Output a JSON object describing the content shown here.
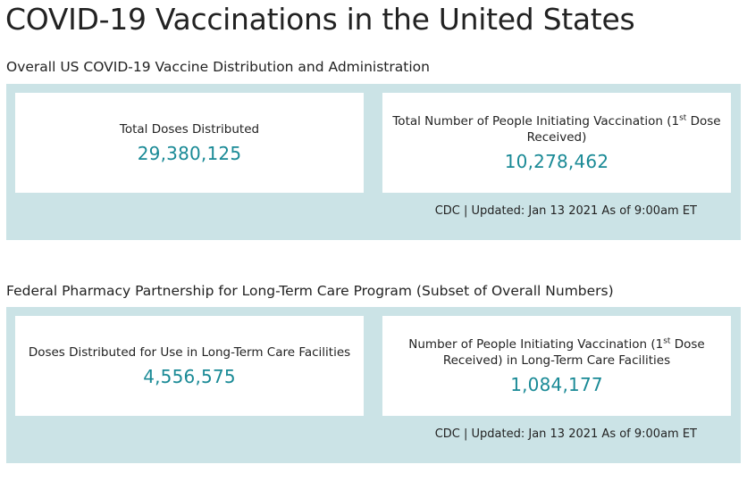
{
  "page_title": "COVID-19 Vaccinations in the United States",
  "sections": [
    {
      "title": "Overall US COVID-19 Vaccine Distribution and Administration",
      "cards": [
        {
          "label": "Total Doses Distributed",
          "value": "29,380,125"
        },
        {
          "label_pre": "Total Number of People Initiating Vaccination (1",
          "label_sup": "st",
          "label_post": " Dose Received)",
          "value": "10,278,462"
        }
      ],
      "footer": "CDC | Updated: Jan 13 2021 As of 9:00am ET"
    },
    {
      "title": "Federal Pharmacy Partnership for Long-Term Care Program (Subset of Overall Numbers)",
      "cards": [
        {
          "label": "Doses Distributed for Use in Long-Term Care Facilities",
          "value": "4,556,575"
        },
        {
          "label_pre": "Number of People Initiating Vaccination (1",
          "label_sup": "st",
          "label_post": " Dose Received) in Long-Term Care Facilities",
          "value": "1,084,177"
        }
      ],
      "footer": "CDC | Updated: Jan 13 2021 As of 9:00am ET"
    }
  ],
  "colors": {
    "accent": "#1a8a96",
    "panel_background": "#cbe3e6",
    "card_background": "#ffffff"
  }
}
